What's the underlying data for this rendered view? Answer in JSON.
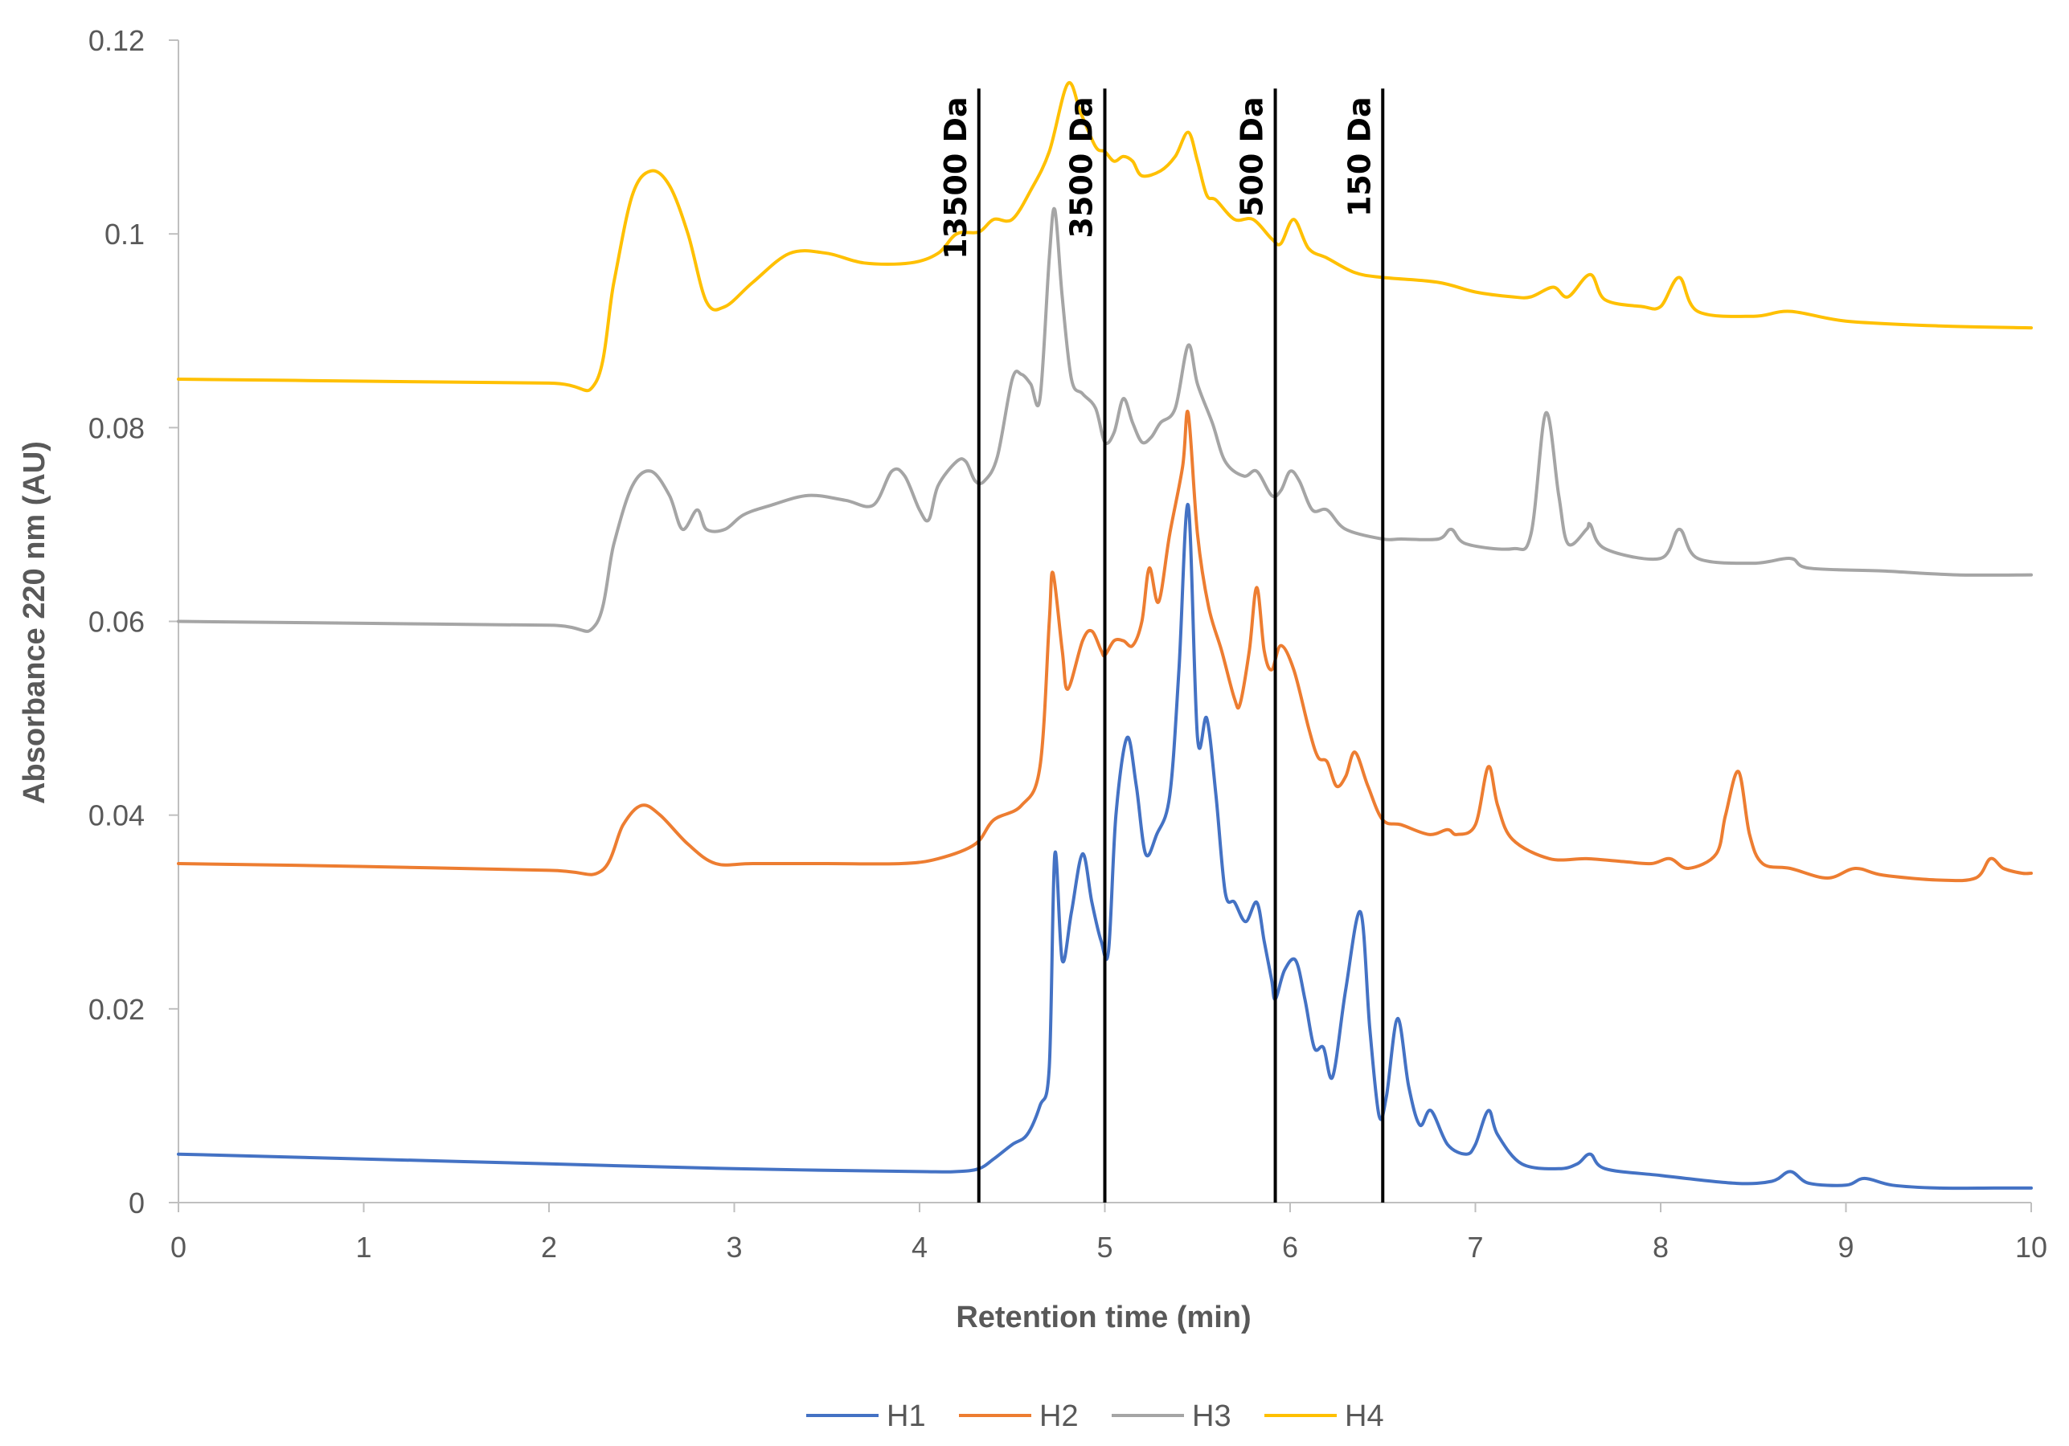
{
  "chart_data": {
    "type": "line",
    "title": "",
    "xlabel": "Retention time (min)",
    "ylabel": "Absorbance 220 nm (AU)",
    "xlim": [
      0,
      10
    ],
    "ylim": [
      0,
      0.12
    ],
    "x_ticks": [
      0,
      1,
      2,
      3,
      4,
      5,
      6,
      7,
      8,
      9,
      10
    ],
    "x_tick_labels": [
      "0",
      "1",
      "2",
      "3",
      "4",
      "5",
      "6",
      "7",
      "8",
      "9",
      "10"
    ],
    "y_ticks": [
      0,
      0.02,
      0.04,
      0.06,
      0.08,
      0.1,
      0.12
    ],
    "y_tick_labels": [
      "0",
      "0.02",
      "0.04",
      "0.06",
      "0.08",
      "0.1",
      "0.12"
    ],
    "grid": false,
    "legend_position": "bottom",
    "markers": [
      {
        "x": 4.32,
        "label": "13500 Da",
        "top": 0.115
      },
      {
        "x": 5.0,
        "label": "3500 Da",
        "top": 0.115
      },
      {
        "x": 5.92,
        "label": "500 Da",
        "top": 0.115
      },
      {
        "x": 6.5,
        "label": "150 Da",
        "top": 0.115
      }
    ],
    "series": [
      {
        "name": "H1",
        "color": "#4472C4",
        "points": [
          [
            0,
            0.005
          ],
          [
            1,
            0.0045
          ],
          [
            2,
            0.004
          ],
          [
            3,
            0.0035
          ],
          [
            4,
            0.0032
          ],
          [
            4.2,
            0.0032
          ],
          [
            4.32,
            0.0035
          ],
          [
            4.4,
            0.0045
          ],
          [
            4.5,
            0.006
          ],
          [
            4.58,
            0.007
          ],
          [
            4.65,
            0.01
          ],
          [
            4.7,
            0.014
          ],
          [
            4.73,
            0.036
          ],
          [
            4.77,
            0.025
          ],
          [
            4.82,
            0.03
          ],
          [
            4.88,
            0.036
          ],
          [
            4.93,
            0.031
          ],
          [
            4.98,
            0.027
          ],
          [
            5.02,
            0.026
          ],
          [
            5.06,
            0.04
          ],
          [
            5.12,
            0.048
          ],
          [
            5.17,
            0.043
          ],
          [
            5.22,
            0.036
          ],
          [
            5.28,
            0.038
          ],
          [
            5.35,
            0.042
          ],
          [
            5.4,
            0.055
          ],
          [
            5.45,
            0.072
          ],
          [
            5.5,
            0.048
          ],
          [
            5.55,
            0.05
          ],
          [
            5.6,
            0.042
          ],
          [
            5.65,
            0.032
          ],
          [
            5.7,
            0.031
          ],
          [
            5.76,
            0.029
          ],
          [
            5.82,
            0.031
          ],
          [
            5.86,
            0.027
          ],
          [
            5.9,
            0.023
          ],
          [
            5.92,
            0.021
          ],
          [
            5.97,
            0.024
          ],
          [
            6.03,
            0.025
          ],
          [
            6.08,
            0.021
          ],
          [
            6.13,
            0.016
          ],
          [
            6.18,
            0.016
          ],
          [
            6.23,
            0.013
          ],
          [
            6.3,
            0.022
          ],
          [
            6.38,
            0.03
          ],
          [
            6.43,
            0.018
          ],
          [
            6.48,
            0.009
          ],
          [
            6.52,
            0.011
          ],
          [
            6.58,
            0.019
          ],
          [
            6.64,
            0.012
          ],
          [
            6.7,
            0.008
          ],
          [
            6.76,
            0.0095
          ],
          [
            6.85,
            0.006
          ],
          [
            6.95,
            0.005
          ],
          [
            7.0,
            0.006
          ],
          [
            7.07,
            0.0095
          ],
          [
            7.12,
            0.007
          ],
          [
            7.25,
            0.004
          ],
          [
            7.45,
            0.0035
          ],
          [
            7.55,
            0.004
          ],
          [
            7.62,
            0.005
          ],
          [
            7.7,
            0.0035
          ],
          [
            8.0,
            0.0028
          ],
          [
            8.4,
            0.002
          ],
          [
            8.6,
            0.0022
          ],
          [
            8.7,
            0.0032
          ],
          [
            8.8,
            0.002
          ],
          [
            9.0,
            0.0018
          ],
          [
            9.1,
            0.0025
          ],
          [
            9.25,
            0.0018
          ],
          [
            9.5,
            0.0015
          ],
          [
            9.8,
            0.0015
          ],
          [
            10,
            0.0015
          ]
        ]
      },
      {
        "name": "H2",
        "color": "#ED7D31",
        "points": [
          [
            0,
            0.035
          ],
          [
            1,
            0.0347
          ],
          [
            2,
            0.0343
          ],
          [
            2.28,
            0.0342
          ],
          [
            2.4,
            0.039
          ],
          [
            2.5,
            0.041
          ],
          [
            2.6,
            0.04
          ],
          [
            2.75,
            0.037
          ],
          [
            2.9,
            0.035
          ],
          [
            3.1,
            0.035
          ],
          [
            3.5,
            0.035
          ],
          [
            3.9,
            0.035
          ],
          [
            4.1,
            0.0355
          ],
          [
            4.3,
            0.037
          ],
          [
            4.4,
            0.0395
          ],
          [
            4.55,
            0.041
          ],
          [
            4.65,
            0.045
          ],
          [
            4.7,
            0.06
          ],
          [
            4.72,
            0.065
          ],
          [
            4.77,
            0.057
          ],
          [
            4.8,
            0.053
          ],
          [
            4.88,
            0.058
          ],
          [
            4.93,
            0.059
          ],
          [
            4.98,
            0.057
          ],
          [
            5.0,
            0.0565
          ],
          [
            5.05,
            0.058
          ],
          [
            5.1,
            0.058
          ],
          [
            5.15,
            0.0575
          ],
          [
            5.2,
            0.06
          ],
          [
            5.24,
            0.0655
          ],
          [
            5.29,
            0.062
          ],
          [
            5.35,
            0.069
          ],
          [
            5.42,
            0.076
          ],
          [
            5.45,
            0.0815
          ],
          [
            5.5,
            0.069
          ],
          [
            5.56,
            0.0615
          ],
          [
            5.63,
            0.057
          ],
          [
            5.7,
            0.052
          ],
          [
            5.73,
            0.0515
          ],
          [
            5.78,
            0.057
          ],
          [
            5.82,
            0.0635
          ],
          [
            5.86,
            0.057
          ],
          [
            5.9,
            0.055
          ],
          [
            5.95,
            0.0575
          ],
          [
            6.02,
            0.055
          ],
          [
            6.1,
            0.049
          ],
          [
            6.15,
            0.046
          ],
          [
            6.2,
            0.0455
          ],
          [
            6.25,
            0.043
          ],
          [
            6.3,
            0.044
          ],
          [
            6.35,
            0.0465
          ],
          [
            6.42,
            0.043
          ],
          [
            6.5,
            0.0395
          ],
          [
            6.6,
            0.039
          ],
          [
            6.75,
            0.038
          ],
          [
            6.85,
            0.0385
          ],
          [
            6.9,
            0.038
          ],
          [
            7.0,
            0.039
          ],
          [
            7.07,
            0.045
          ],
          [
            7.12,
            0.041
          ],
          [
            7.2,
            0.0375
          ],
          [
            7.4,
            0.0355
          ],
          [
            7.6,
            0.0355
          ],
          [
            7.8,
            0.0352
          ],
          [
            7.95,
            0.035
          ],
          [
            8.05,
            0.0355
          ],
          [
            8.15,
            0.0345
          ],
          [
            8.3,
            0.036
          ],
          [
            8.35,
            0.04
          ],
          [
            8.42,
            0.0445
          ],
          [
            8.48,
            0.038
          ],
          [
            8.55,
            0.035
          ],
          [
            8.7,
            0.0345
          ],
          [
            8.9,
            0.0335
          ],
          [
            9.05,
            0.0345
          ],
          [
            9.2,
            0.0338
          ],
          [
            9.5,
            0.0333
          ],
          [
            9.7,
            0.0335
          ],
          [
            9.78,
            0.0355
          ],
          [
            9.85,
            0.0345
          ],
          [
            9.95,
            0.034
          ],
          [
            10,
            0.034
          ]
        ]
      },
      {
        "name": "H3",
        "color": "#A5A5A5",
        "points": [
          [
            0,
            0.06
          ],
          [
            1,
            0.0598
          ],
          [
            2,
            0.0596
          ],
          [
            2.25,
            0.0596
          ],
          [
            2.35,
            0.068
          ],
          [
            2.45,
            0.074
          ],
          [
            2.55,
            0.0755
          ],
          [
            2.65,
            0.073
          ],
          [
            2.72,
            0.0695
          ],
          [
            2.8,
            0.0715
          ],
          [
            2.85,
            0.0695
          ],
          [
            2.95,
            0.0695
          ],
          [
            3.05,
            0.071
          ],
          [
            3.2,
            0.072
          ],
          [
            3.4,
            0.073
          ],
          [
            3.6,
            0.0725
          ],
          [
            3.75,
            0.072
          ],
          [
            3.85,
            0.0755
          ],
          [
            3.92,
            0.075
          ],
          [
            4.0,
            0.0715
          ],
          [
            4.05,
            0.0705
          ],
          [
            4.1,
            0.074
          ],
          [
            4.2,
            0.0765
          ],
          [
            4.25,
            0.0765
          ],
          [
            4.3,
            0.0745
          ],
          [
            4.35,
            0.0745
          ],
          [
            4.42,
            0.077
          ],
          [
            4.5,
            0.085
          ],
          [
            4.55,
            0.0855
          ],
          [
            4.6,
            0.0845
          ],
          [
            4.65,
            0.083
          ],
          [
            4.7,
            0.0975
          ],
          [
            4.73,
            0.1025
          ],
          [
            4.77,
            0.0935
          ],
          [
            4.82,
            0.085
          ],
          [
            4.88,
            0.0835
          ],
          [
            4.95,
            0.082
          ],
          [
            5.0,
            0.0785
          ],
          [
            5.05,
            0.0795
          ],
          [
            5.1,
            0.083
          ],
          [
            5.15,
            0.0805
          ],
          [
            5.2,
            0.0785
          ],
          [
            5.25,
            0.079
          ],
          [
            5.3,
            0.0805
          ],
          [
            5.38,
            0.082
          ],
          [
            5.45,
            0.0885
          ],
          [
            5.5,
            0.0845
          ],
          [
            5.58,
            0.0805
          ],
          [
            5.65,
            0.0765
          ],
          [
            5.75,
            0.075
          ],
          [
            5.82,
            0.0755
          ],
          [
            5.9,
            0.073
          ],
          [
            5.95,
            0.0735
          ],
          [
            6.0,
            0.0755
          ],
          [
            6.05,
            0.0745
          ],
          [
            6.12,
            0.0715
          ],
          [
            6.2,
            0.0715
          ],
          [
            6.3,
            0.0695
          ],
          [
            6.5,
            0.0685
          ],
          [
            6.6,
            0.0685
          ],
          [
            6.8,
            0.0685
          ],
          [
            6.87,
            0.0695
          ],
          [
            6.95,
            0.068
          ],
          [
            7.2,
            0.0675
          ],
          [
            7.3,
            0.069
          ],
          [
            7.38,
            0.0815
          ],
          [
            7.45,
            0.073
          ],
          [
            7.5,
            0.068
          ],
          [
            7.6,
            0.0695
          ],
          [
            7.62,
            0.07
          ],
          [
            7.7,
            0.0675
          ],
          [
            8.0,
            0.0665
          ],
          [
            8.1,
            0.0695
          ],
          [
            8.2,
            0.0665
          ],
          [
            8.5,
            0.066
          ],
          [
            8.7,
            0.0665
          ],
          [
            8.8,
            0.0655
          ],
          [
            9.2,
            0.0652
          ],
          [
            9.6,
            0.0648
          ],
          [
            10,
            0.0648
          ]
        ]
      },
      {
        "name": "H4",
        "color": "#FFC000",
        "points": [
          [
            0,
            0.085
          ],
          [
            1,
            0.0848
          ],
          [
            2,
            0.0846
          ],
          [
            2.25,
            0.0846
          ],
          [
            2.35,
            0.095
          ],
          [
            2.45,
            0.104
          ],
          [
            2.55,
            0.1065
          ],
          [
            2.65,
            0.105
          ],
          [
            2.75,
            0.1
          ],
          [
            2.85,
            0.093
          ],
          [
            2.95,
            0.0925
          ],
          [
            3.1,
            0.095
          ],
          [
            3.3,
            0.098
          ],
          [
            3.5,
            0.098
          ],
          [
            3.7,
            0.097
          ],
          [
            3.95,
            0.097
          ],
          [
            4.1,
            0.098
          ],
          [
            4.2,
            0.1
          ],
          [
            4.32,
            0.1002
          ],
          [
            4.4,
            0.1015
          ],
          [
            4.5,
            0.1015
          ],
          [
            4.6,
            0.1045
          ],
          [
            4.7,
            0.1085
          ],
          [
            4.8,
            0.1155
          ],
          [
            4.87,
            0.1125
          ],
          [
            4.95,
            0.109
          ],
          [
            5.0,
            0.1085
          ],
          [
            5.05,
            0.1075
          ],
          [
            5.1,
            0.108
          ],
          [
            5.15,
            0.1075
          ],
          [
            5.2,
            0.106
          ],
          [
            5.3,
            0.1065
          ],
          [
            5.38,
            0.108
          ],
          [
            5.45,
            0.1105
          ],
          [
            5.5,
            0.1075
          ],
          [
            5.55,
            0.104
          ],
          [
            5.6,
            0.1035
          ],
          [
            5.7,
            0.1015
          ],
          [
            5.8,
            0.1015
          ],
          [
            5.9,
            0.0995
          ],
          [
            5.95,
            0.099
          ],
          [
            6.02,
            0.1015
          ],
          [
            6.1,
            0.0985
          ],
          [
            6.2,
            0.0975
          ],
          [
            6.35,
            0.096
          ],
          [
            6.5,
            0.0955
          ],
          [
            6.8,
            0.095
          ],
          [
            7.0,
            0.094
          ],
          [
            7.2,
            0.0935
          ],
          [
            7.3,
            0.0935
          ],
          [
            7.42,
            0.0945
          ],
          [
            7.5,
            0.0935
          ],
          [
            7.62,
            0.0958
          ],
          [
            7.7,
            0.0932
          ],
          [
            7.9,
            0.0925
          ],
          [
            8.0,
            0.0925
          ],
          [
            8.1,
            0.0955
          ],
          [
            8.2,
            0.092
          ],
          [
            8.5,
            0.0915
          ],
          [
            8.7,
            0.092
          ],
          [
            9.0,
            0.091
          ],
          [
            9.5,
            0.0905
          ],
          [
            10,
            0.0903
          ]
        ]
      }
    ]
  }
}
